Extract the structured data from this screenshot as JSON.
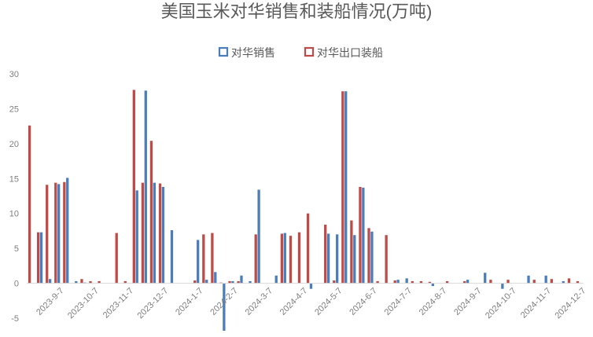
{
  "chart_data": {
    "type": "bar",
    "title": "美国玉米对华销售和装船情况(万吨)",
    "ylim": [
      -5,
      30
    ],
    "yticks": [
      -5,
      0,
      5,
      10,
      15,
      20,
      25,
      30
    ],
    "grid": false,
    "legend_position": "top-center",
    "x_tick_labels": [
      "2023-9-7",
      "2023-10-7",
      "2023-11-7",
      "2023-12-7",
      "2024-1-7",
      "2024-2-7",
      "2024-3-7",
      "2024-4-7",
      "2024-5-7",
      "2024-6-7",
      "2024-7-7",
      "2024-8-7",
      "2024-9-7",
      "2024-10-7",
      "2024-11-7",
      "2024-12-7"
    ],
    "series": [
      {
        "name": "对华销售",
        "color": "#4a7ebb",
        "values": [
          0,
          7.3,
          0.6,
          14.2,
          15.1,
          0.3,
          0.1,
          0,
          0,
          0,
          0,
          0,
          13.3,
          27.6,
          14.4,
          13.8,
          7.6,
          0,
          0,
          6.2,
          0.5,
          1.6,
          -6.8,
          0.3,
          1.1,
          0.3,
          13.4,
          0,
          1.1,
          7.2,
          0,
          0,
          -0.8,
          0,
          7.1,
          7.0,
          27.5,
          6.9,
          13.7,
          7.4,
          0,
          0,
          0.5,
          0.7,
          0,
          0,
          -0.4,
          0,
          0,
          0,
          0.5,
          0,
          1.5,
          0,
          -0.8,
          0,
          0,
          1.1,
          0,
          1.1,
          0,
          0.3,
          0,
          0
        ]
      },
      {
        "name": "对华出口装船",
        "color": "#be4b48",
        "values": [
          22.6,
          7.3,
          14.1,
          14.4,
          14.5,
          0,
          0.6,
          0.3,
          0.3,
          0,
          7.2,
          0.3,
          27.7,
          14.4,
          20.4,
          14.3,
          0,
          0,
          0,
          0.4,
          7.0,
          7.2,
          0.1,
          0.3,
          0.3,
          0,
          7.0,
          0,
          0,
          7.1,
          6.8,
          7.3,
          10.0,
          0,
          8.4,
          0.4,
          27.5,
          9.0,
          13.8,
          7.9,
          0.3,
          6.9,
          0.4,
          0,
          0.3,
          0.3,
          0.2,
          0,
          0.3,
          0,
          0.3,
          0,
          0,
          0.5,
          0,
          0.5,
          0,
          0,
          0.5,
          0,
          0.6,
          0,
          0.7,
          0.3
        ]
      }
    ]
  }
}
